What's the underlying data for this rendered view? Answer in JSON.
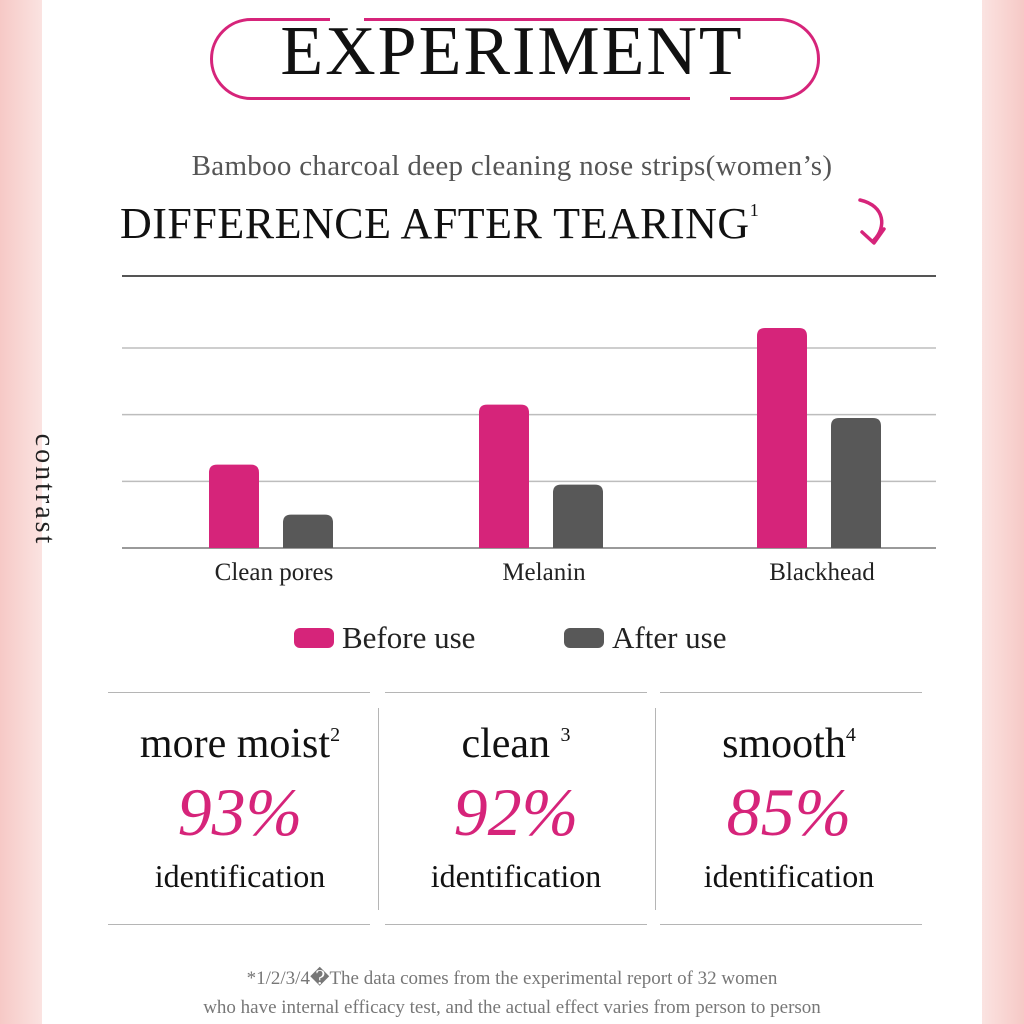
{
  "header": {
    "title": "EXPERIMENT",
    "subtitle": "Bamboo charcoal deep cleaning nose strips(women’s)",
    "heading": "DIFFERENCE AFTER TEARING",
    "heading_note": "1"
  },
  "chart_data": {
    "type": "bar",
    "categories": [
      "Clean pores",
      "Melanin",
      "Blackhead"
    ],
    "series": [
      {
        "name": "Before use",
        "color": "#d6247a",
        "values": [
          1.25,
          2.15,
          3.3
        ]
      },
      {
        "name": "After use",
        "color": "#585858",
        "values": [
          0.5,
          0.95,
          1.95
        ]
      }
    ],
    "ylabel": "contrast",
    "ylim": [
      0,
      3.3
    ],
    "grid": true,
    "legend": "bottom-center"
  },
  "stats": [
    {
      "label": "more moist",
      "note": "2",
      "value": "93%",
      "caption": "identification"
    },
    {
      "label": "clean",
      "note": "3",
      "value": "92%",
      "caption": "identification"
    },
    {
      "label": "smooth",
      "note": "4",
      "value": "85%",
      "caption": "identification"
    }
  ],
  "footnote": {
    "line1": "*1/2/3/4�The data comes from the experimental report of 32 women",
    "line2": "who have internal efficacy test, and the actual effect varies from person to person"
  }
}
